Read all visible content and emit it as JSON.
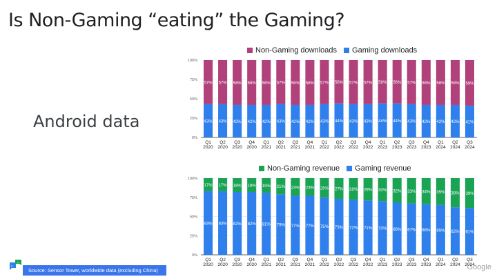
{
  "slide": {
    "title": "Is Non-Gaming “eating” the Gaming?",
    "subtitle": "Android data",
    "source": "Source: Sensor Tower, worldwide data (excluding China)",
    "brand": "Google"
  },
  "colors": {
    "gaming": "#2f80ed",
    "non_gaming_downloads": "#b0417a",
    "non_gaming_revenue": "#1aa353",
    "source_box": "#3a76ea"
  },
  "chart_data": [
    {
      "type": "bar",
      "stacked": true,
      "title": "",
      "legend_position": "top",
      "categories": [
        "Q1 2020",
        "Q2 2020",
        "Q3 2020",
        "Q4 2020",
        "Q1 2021",
        "Q2 2021",
        "Q3 2021",
        "Q4 2021",
        "Q1 2022",
        "Q2 2022",
        "Q3 2022",
        "Q4 2022",
        "Q1 2023",
        "Q2 2023",
        "Q3 2023",
        "Q4 2023",
        "Q1 2024",
        "Q2 2024",
        "Q3 2024"
      ],
      "yticks": [
        "0%",
        "25%",
        "50%",
        "75%",
        "100%"
      ],
      "ylim": [
        0,
        100
      ],
      "grid": true,
      "series": [
        {
          "name": "Gaming downloads",
          "color": "#2f80ed",
          "values": [
            43,
            43,
            42,
            42,
            42,
            43,
            42,
            42,
            43,
            44,
            43,
            43,
            44,
            44,
            43,
            42,
            42,
            42,
            41
          ]
        },
        {
          "name": "Non-Gaming downloads",
          "color": "#b0417a",
          "values": [
            57,
            57,
            58,
            58,
            58,
            57,
            58,
            58,
            57,
            56,
            57,
            57,
            56,
            56,
            57,
            58,
            58,
            58,
            59
          ]
        }
      ],
      "legend": [
        "Non-Gaming downloads",
        "Gaming downloads"
      ]
    },
    {
      "type": "bar",
      "stacked": true,
      "title": "",
      "legend_position": "top",
      "categories": [
        "Q1 2020",
        "Q2 2020",
        "Q3 2020",
        "Q4 2020",
        "Q1 2021",
        "Q2 2021",
        "Q3 2021",
        "Q4 2021",
        "Q1 2022",
        "Q2 2022",
        "Q3 2022",
        "Q4 2022",
        "Q1 2023",
        "Q2 2023",
        "Q3 2023",
        "Q4 2023",
        "Q1 2024",
        "Q2 2024",
        "Q3 2024"
      ],
      "yticks": [
        "0%",
        "25%",
        "50%",
        "75%",
        "100%"
      ],
      "ylim": [
        0,
        100
      ],
      "grid": true,
      "series": [
        {
          "name": "Gaming revenue",
          "color": "#2f80ed",
          "values": [
            83,
            83,
            82,
            82,
            81,
            79,
            77,
            77,
            75,
            73,
            72,
            71,
            70,
            68,
            67,
            66,
            65,
            62,
            61
          ]
        },
        {
          "name": "Non-Gaming revenue",
          "color": "#1aa353",
          "values": [
            17,
            17,
            18,
            18,
            19,
            21,
            23,
            23,
            25,
            27,
            28,
            29,
            30,
            32,
            33,
            34,
            35,
            38,
            39
          ]
        }
      ],
      "legend": [
        "Non-Gaming revenue",
        "Gaming revenue"
      ]
    }
  ]
}
